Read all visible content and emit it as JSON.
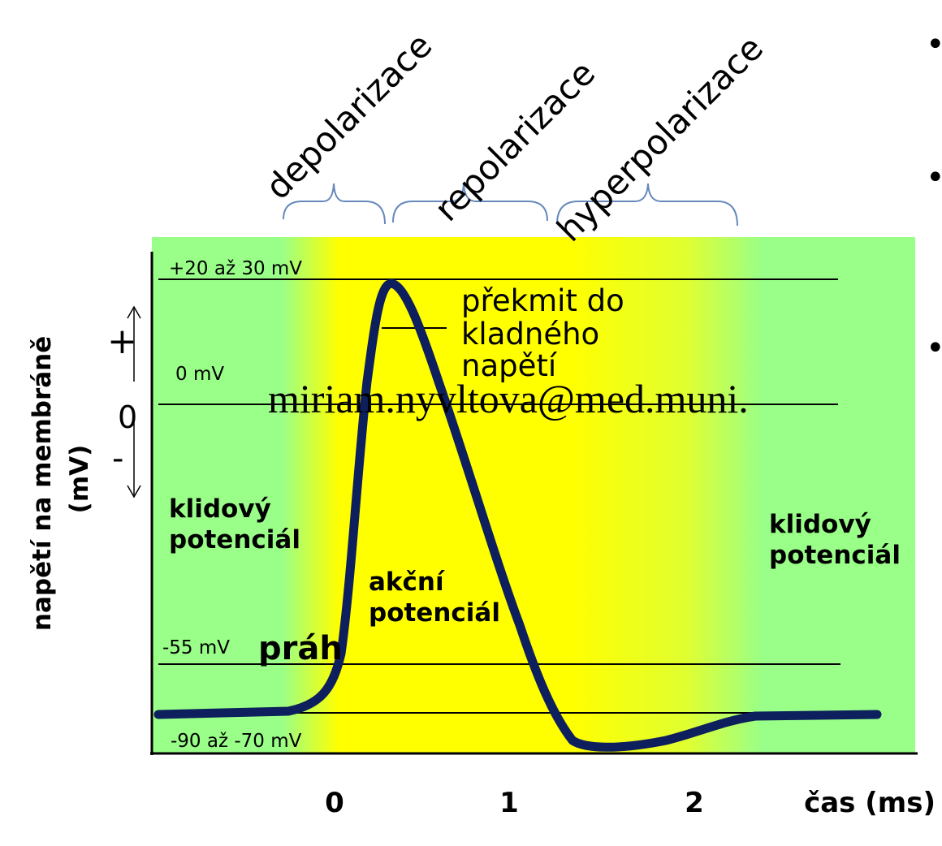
{
  "phases": {
    "depolarization": "depolarizace",
    "repolarization": "repolarizace",
    "hyperpolarization": "hyperpolarizace"
  },
  "levels": {
    "peak": "+20 až 30 mV",
    "zero": "0 mV",
    "threshold": "-55 mV",
    "resting": "-90 až -70 mV"
  },
  "annotations": {
    "overshoot": [
      "překmit do",
      "kladného",
      "napětí"
    ],
    "threshold": "práh",
    "action_potential": [
      "akční",
      "potenciál"
    ],
    "resting_left": [
      "klidový",
      "potenciál"
    ],
    "resting_right": [
      "klidový",
      "potenciál"
    ],
    "watermark": "miriam.nyvltova@med.muni."
  },
  "axes": {
    "ylabel": [
      "napětí na membráně",
      "(mV)"
    ],
    "xlabel": "čas (ms)",
    "xticks": [
      "0",
      "1",
      "2"
    ],
    "polarity": {
      "plus": "+",
      "zero": "0",
      "minus": "-"
    }
  },
  "colors": {
    "green": "#99ff88",
    "yellow": "#ffff00",
    "curve": "#0d1f5c",
    "brace": "#6688bb",
    "line": "#000000"
  },
  "bullets": [
    "•",
    "•",
    "•"
  ]
}
